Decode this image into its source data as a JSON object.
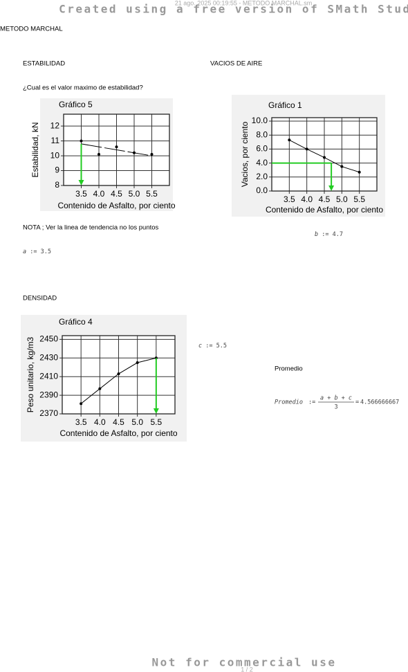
{
  "header": {
    "timestamp": "21 ago. 2025 00:19:55 - METODO MARCHAL.sm",
    "watermark": "Created using a free version of SMath Studio"
  },
  "title": "METODO MARCHAL",
  "stability": {
    "heading": "ESTABILIDAD",
    "question": "¿Cual es el valor maximo de estabilidad?",
    "chart": {
      "type": "scatter",
      "title": "Gráfico 5",
      "x_label": "Contenido de Asfalto, por ciento",
      "y_label": "Estabilidad, kN",
      "x": [
        3.5,
        4.0,
        4.5,
        5.0,
        5.5
      ],
      "values": [
        11,
        10.1,
        10.6,
        10.2,
        10.1
      ],
      "trend": [
        10.8,
        10.0
      ],
      "xlim": [
        3,
        6
      ],
      "ylim": [
        8,
        12.8
      ],
      "xticks": [
        3.5,
        {
          "value": 4,
          "label": "4.0"
        },
        4.5,
        {
          "value": 5,
          "label": "5.0"
        },
        5.5
      ],
      "yticks": [
        8,
        9,
        10,
        11,
        12
      ],
      "grid": true,
      "color": "#000000",
      "arrow_color": "#22cc22"
    },
    "note": "NOTA ; Ver la linea de tendencia no los puntos",
    "variable": {
      "name": "a",
      "op": ":=",
      "value": 3.5
    }
  },
  "voids": {
    "heading": "VACIOS DE AIRE",
    "chart": {
      "type": "line",
      "title": "Gráfico 1",
      "x_label": "Contenido de Asfalto, por ciento",
      "y_label": "Vacios, por ciento",
      "x": [
        3.5,
        4.0,
        4.5,
        5.0,
        5.5
      ],
      "values": [
        7.3,
        6.0,
        4.8,
        3.5,
        2.7
      ],
      "guide_y": 4,
      "xlim": [
        3,
        6
      ],
      "ylim": [
        0,
        10.5
      ],
      "xticks": [
        3.5,
        {
          "value": 4,
          "label": "4.0"
        },
        4.5,
        {
          "value": 5,
          "label": "5.0"
        },
        5.5
      ],
      "yticks": [
        {
          "value": 0,
          "label": "0.0"
        },
        {
          "value": 2,
          "label": "2.0"
        },
        {
          "value": 4,
          "label": "4.0"
        },
        {
          "value": 6,
          "label": "6.0"
        },
        {
          "value": 8,
          "label": "8.0"
        },
        {
          "value": 10,
          "label": "10.0"
        }
      ],
      "grid": true,
      "color": "#000000",
      "arrow_color": "#22cc22"
    },
    "variable": {
      "name": "b",
      "op": ":=",
      "value": 4.7
    }
  },
  "density": {
    "heading": "DENSIDAD",
    "chart": {
      "type": "line",
      "title": "Gráfico 4",
      "x_label": "Contenido de Asfalto, por ciento",
      "y_label": "Peso unitario, kg/m3",
      "x": [
        3.5,
        4.0,
        4.5,
        5.0,
        5.5
      ],
      "values": [
        2381,
        2397,
        2413,
        2425,
        2430
      ],
      "xlim": [
        3,
        6
      ],
      "ylim": [
        2370,
        2454
      ],
      "xticks": [
        3.5,
        {
          "value": 4,
          "label": "4.0"
        },
        4.5,
        {
          "value": 5,
          "label": "5.0"
        },
        5.5
      ],
      "yticks": [
        2370,
        2390,
        2410,
        2430,
        2450
      ],
      "grid": true,
      "color": "#000000",
      "arrow_color": "#22cc22"
    },
    "variable": {
      "name": "c",
      "op": ":=",
      "value": 5.5
    }
  },
  "average": {
    "heading": "Promedio",
    "formula": {
      "lhs": "Promedio",
      "op": ":=",
      "numerator": "a + b + c",
      "denominator": 3,
      "eq": "=",
      "result": 4.566666667
    }
  },
  "footer": {
    "watermark": "Not for commercial use",
    "page": "1 / 2"
  }
}
